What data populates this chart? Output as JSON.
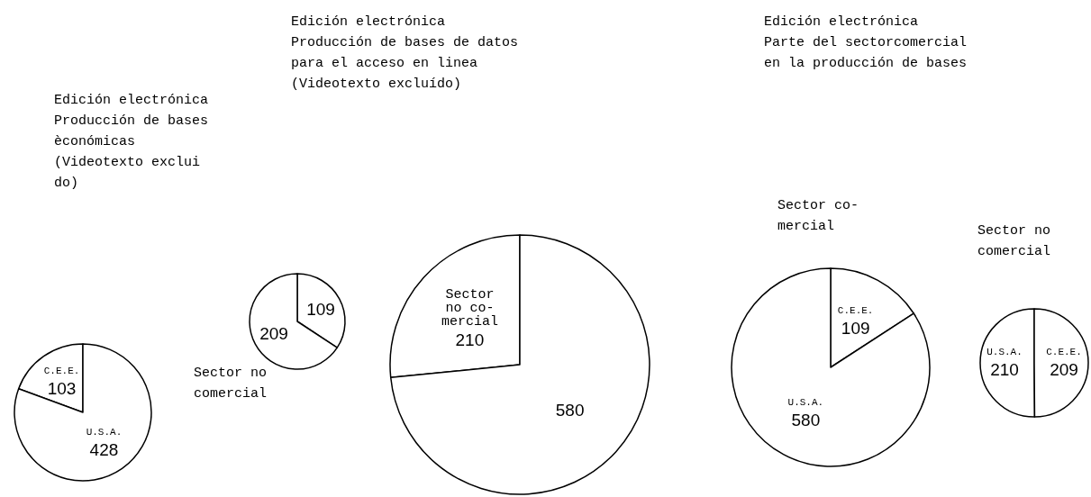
{
  "chart_data": [
    {
      "type": "pie",
      "title": "Edición electrónica\nProducción de bases\nèconómicas\n(Videotexto exclui\ndo)",
      "categories": [
        "C.E.E.",
        "U.S.A."
      ],
      "values": [
        103,
        428
      ],
      "colors": [
        "#ffffff",
        "#ffffff"
      ],
      "data_labels": true
    },
    {
      "type": "pie",
      "title": "Sector no\ncomercial",
      "categories": [
        null,
        null
      ],
      "values": [
        109,
        209
      ],
      "colors": [
        "#ffffff",
        "#ffffff"
      ],
      "data_labels": true
    },
    {
      "type": "pie",
      "title": "Edición electrónica\nProducción de bases de datos\npara el acceso en linea\n(Videotexto excluído)",
      "categories": [
        "Sector\nno co-\nmercial",
        null
      ],
      "values": [
        210,
        580
      ],
      "colors": [
        "#ffffff",
        "#ffffff"
      ],
      "data_labels": true
    },
    {
      "type": "pie",
      "title": "Edición electrónica\nParte del sectorcomercial\nen la producción de bases",
      "subtitle": "Sector co-\nmercial",
      "categories": [
        "C.E.E.",
        "U.S.A."
      ],
      "values": [
        109,
        580
      ],
      "colors": [
        "#ffffff",
        "#ffffff"
      ],
      "data_labels": true
    },
    {
      "type": "pie",
      "title": "Sector no\ncomercial",
      "categories": [
        "U.S.A.",
        "C.E.E."
      ],
      "values": [
        210,
        209
      ],
      "colors": [
        "#ffffff",
        "#ffffff"
      ],
      "data_labels": true
    }
  ]
}
